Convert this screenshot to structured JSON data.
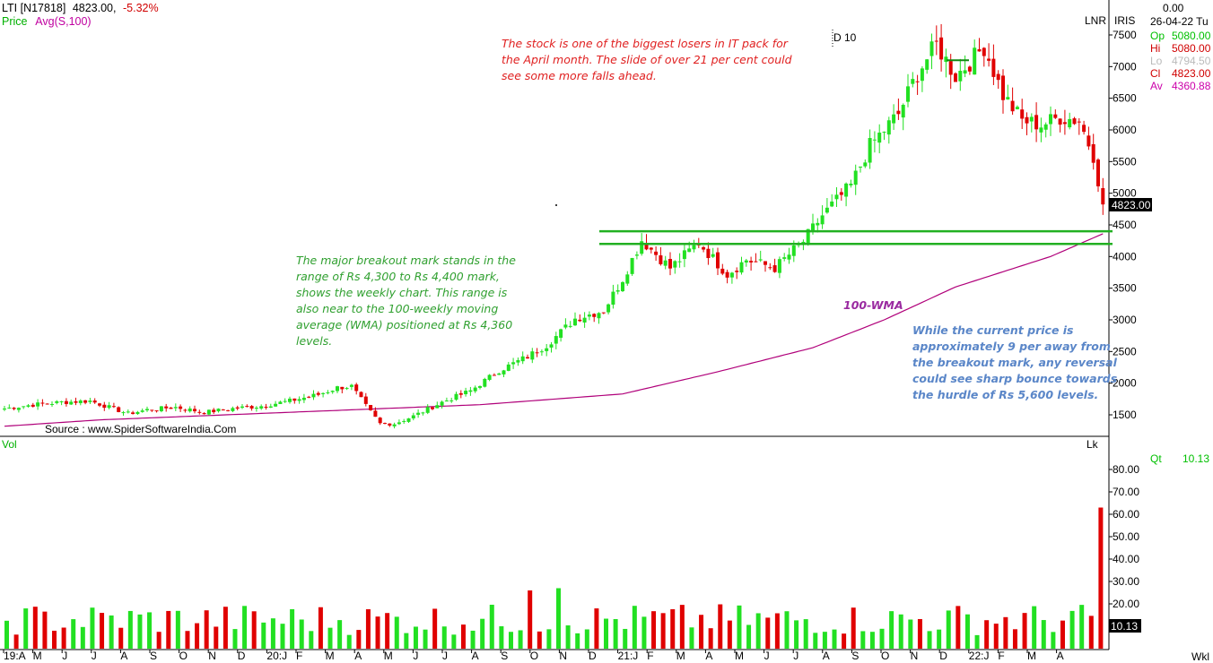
{
  "header": {
    "symbol": "LTI [N17818]",
    "price": "4823.00,",
    "change": "-5.32%",
    "indicator_label": "Price",
    "indicator_value": "Avg(S,100)",
    "top_right_value": "0.00",
    "scale_mode": "LNR",
    "scale_type": "IRIS",
    "date_label": "26-04-22 Tu"
  },
  "ohlc_panel": {
    "rows": [
      {
        "label": "Op",
        "value": "5080.00",
        "color": "#00c000"
      },
      {
        "label": "Hi",
        "value": "5080.00",
        "color": "#d00000"
      },
      {
        "label": "Lo",
        "value": "4794.50",
        "color": "#bbbbbb"
      },
      {
        "label": "Cl",
        "value": "4823.00",
        "color": "#d00000"
      },
      {
        "label": "Av",
        "value": "4360.88",
        "color": "#cc00aa"
      }
    ]
  },
  "last_price_tag": "4823.00",
  "cursor_label": "D 10",
  "source": "Source : www.SpiderSoftwareIndia.Com",
  "annotations": {
    "note_red": [
      "The stock is one of the biggest losers in IT pack for",
      "the April month. The slide of over 21 per cent could",
      "see some more falls ahead."
    ],
    "note_green": [
      "The major breakout mark stands in the",
      "range of Rs 4,300 to Rs 4,400 mark,",
      "shows the weekly chart. This range is",
      "also near to the 100-weekly moving",
      "average (WMA) positioned at Rs 4,360",
      "levels."
    ],
    "wma_label": "100-WMA",
    "note_blue": [
      "While the current price is",
      "approximately 9 per away from",
      "the breakout mark, any reversal",
      "could see sharp bounce towards",
      "the hurdle of Rs 5,600 levels."
    ]
  },
  "volume_panel": {
    "label": "Vol",
    "unit_label": "Lk",
    "qty_label": "Qt",
    "qty_value": "10.13",
    "last_tag": "10.13",
    "period_label": "Wkl"
  },
  "colors": {
    "up": "#22e022",
    "down": "#e00000",
    "wma": "#b0007a",
    "breakout": "#22b022"
  },
  "chart_data": {
    "type": "candlestick",
    "price_axis": {
      "ticks": [
        1500,
        2000,
        2500,
        3000,
        3500,
        4000,
        4500,
        5000,
        5500,
        6000,
        6500,
        7000,
        7500
      ],
      "range": [
        1150,
        7750
      ]
    },
    "volume_axis": {
      "ticks": [
        10,
        20,
        30,
        40,
        50,
        60,
        70,
        80
      ],
      "range": [
        0,
        88
      ]
    },
    "x_labels": [
      "19:A",
      "M",
      "J",
      "J",
      "A",
      "S",
      "O",
      "N",
      "D",
      "20:J",
      "F",
      "M",
      "A",
      "M",
      "J",
      "J",
      "A",
      "S",
      "O",
      "N",
      "D",
      "21:J",
      "F",
      "M",
      "A",
      "M",
      "J",
      "J",
      "A",
      "S",
      "O",
      "N",
      "D",
      "22:J",
      "F",
      "M",
      "A"
    ],
    "breakout_levels": [
      4400,
      4200
    ],
    "moving_average": {
      "name": "Avg(S,100)",
      "anchors": [
        [
          0,
          1320
        ],
        [
          20,
          1420
        ],
        [
          60,
          1540
        ],
        [
          100,
          1660
        ],
        [
          130,
          1830
        ],
        [
          150,
          2180
        ],
        [
          170,
          2560
        ],
        [
          185,
          3000
        ],
        [
          200,
          3520
        ],
        [
          220,
          4000
        ],
        [
          231,
          4360
        ]
      ]
    },
    "volume_last": 10.13
  }
}
